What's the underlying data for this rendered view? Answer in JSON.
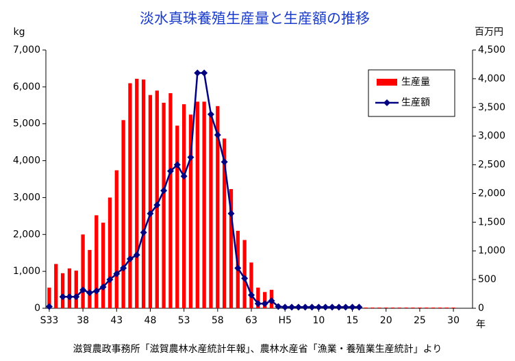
{
  "chart_data": {
    "type": "bar_line",
    "title": "淡水真珠養殖生産量と生産額の推移",
    "y_label": "kg",
    "y2_label": "百万円",
    "x_label": "年",
    "source": "滋賀農政事務所「滋賀農林水産統計年報」、農林水産省「漁業・養殖業生産統計」より",
    "categories": [
      "S33",
      null,
      null,
      null,
      null,
      "38",
      null,
      null,
      null,
      null,
      "43",
      null,
      null,
      null,
      null,
      "48",
      null,
      null,
      null,
      null,
      "53",
      null,
      null,
      null,
      null,
      "58",
      null,
      null,
      null,
      null,
      "63",
      null,
      null,
      null,
      null,
      "H5",
      null,
      null,
      null,
      null,
      "10",
      null,
      null,
      null,
      null,
      "15",
      null,
      null,
      null,
      null,
      "20",
      null,
      null,
      null,
      null,
      "25",
      null,
      null,
      null,
      null,
      "30"
    ],
    "series": [
      {
        "name": "生産量",
        "color": "#ff0000",
        "values": [
          560,
          1200,
          950,
          1080,
          1020,
          2000,
          1580,
          2520,
          2320,
          3000,
          3740,
          5100,
          6100,
          6220,
          6200,
          5780,
          5900,
          5570,
          5830,
          4950,
          5530,
          5250,
          5600,
          5600,
          5250,
          5480,
          4600,
          3230,
          2100,
          1850,
          1240,
          560,
          440,
          500,
          100,
          30,
          30,
          30,
          30,
          30,
          30,
          30,
          30,
          30,
          30,
          30,
          20,
          20,
          20,
          20,
          20,
          20,
          20,
          20,
          20,
          20,
          20,
          20,
          20,
          20,
          20
        ]
      },
      {
        "name": "生産額",
        "color": "#000080",
        "axis": "y2",
        "values": [
          30,
          null,
          200,
          200,
          200,
          320,
          270,
          300,
          370,
          500,
          600,
          700,
          860,
          930,
          1320,
          1650,
          1800,
          2050,
          2390,
          2500,
          2300,
          2630,
          4100,
          4100,
          3380,
          3020,
          2550,
          1650,
          700,
          520,
          230,
          80,
          80,
          130,
          30,
          20,
          20,
          20,
          20,
          20,
          20,
          20,
          20,
          20,
          20,
          20,
          20,
          null,
          null,
          null,
          null,
          null,
          null,
          null,
          null,
          null,
          null,
          null,
          null,
          null,
          null
        ]
      }
    ],
    "ylim": [
      0,
      7000
    ],
    "yticks": [
      0,
      {
        "value": 1000,
        "label": "1,000"
      },
      {
        "value": 2000,
        "label": "2,000"
      },
      {
        "value": 3000,
        "label": "3,000"
      },
      {
        "value": 4000,
        "label": "4,000"
      },
      {
        "value": 5000,
        "label": "5,000"
      },
      {
        "value": 6000,
        "label": "6,000"
      },
      {
        "value": 7000,
        "label": "7,000"
      }
    ],
    "y2lim": [
      0,
      4500
    ],
    "y2ticks": [
      0,
      500,
      {
        "value": 1000,
        "label": "1,000"
      },
      {
        "value": 1500,
        "label": "1,500"
      },
      {
        "value": 2000,
        "label": "2,000"
      },
      {
        "value": 2500,
        "label": "2,500"
      },
      {
        "value": 3000,
        "label": "3,000"
      },
      {
        "value": 3500,
        "label": "3,500"
      },
      {
        "value": 4000,
        "label": "4,000"
      },
      {
        "value": 4500,
        "label": "4,500"
      }
    ],
    "legend": "upper right"
  }
}
